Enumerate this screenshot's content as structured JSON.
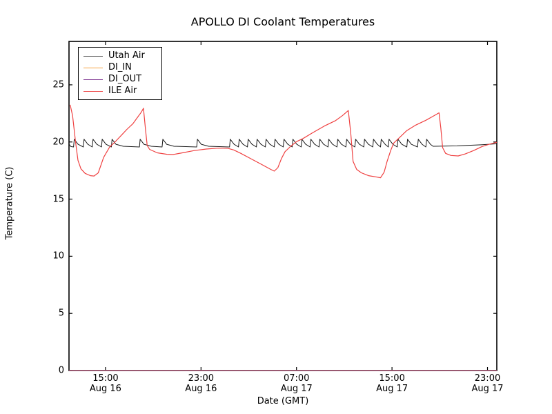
{
  "figure": {
    "title": "APOLLO DI Coolant Temperatures"
  },
  "axes": {
    "xlabel": "Date (GMT)",
    "ylabel": "Temperature (C)",
    "x_ticks": [
      {
        "time": "15:00",
        "date": "Aug 16",
        "t": 3.06
      },
      {
        "time": "23:00",
        "date": "Aug 16",
        "t": 11.06
      },
      {
        "time": "07:00",
        "date": "Aug 17",
        "t": 19.06
      },
      {
        "time": "15:00",
        "date": "Aug 17",
        "t": 27.06
      },
      {
        "time": "23:00",
        "date": "Aug 17",
        "t": 35.06
      }
    ],
    "y_ticks": [
      {
        "label": "0",
        "v": 0
      },
      {
        "label": "5",
        "v": 5
      },
      {
        "label": "10",
        "v": 10
      },
      {
        "label": "15",
        "v": 15
      },
      {
        "label": "20",
        "v": 20
      },
      {
        "label": "25",
        "v": 25
      }
    ]
  },
  "legend": {
    "items": [
      {
        "label": "Utah Air",
        "color": "#4d4d4d"
      },
      {
        "label": "DI_IN",
        "color": "#f7a13d"
      },
      {
        "label": "DI_OUT",
        "color": "#7b2f8e"
      },
      {
        "label": "ILE Air",
        "color": "#ef5050"
      }
    ]
  },
  "chart_data": {
    "type": "line",
    "title": "APOLLO DI Coolant Temperatures",
    "xlabel": "Date (GMT)",
    "ylabel": "Temperature (C)",
    "x_unit": "hours after Aug 16 12:00 GMT",
    "xlim": [
      0,
      35.84
    ],
    "ylim": [
      0,
      28.8
    ],
    "grid": false,
    "legend_position": "upper left",
    "series": [
      {
        "name": "Utah Air",
        "color": "#1a1a1a",
        "shape": "sawtooth-spikes",
        "baseline": 19.56,
        "spike_peak": 20.24,
        "start_points": [
          [
            0,
            19.82
          ],
          [
            0.15,
            19.6
          ]
        ],
        "spike_times": [
          0.38,
          1.2,
          1.95,
          2.72,
          3.55,
          5.9,
          7.8,
          10.7,
          13.45,
          14.2,
          14.95,
          15.7,
          16.45,
          17.2,
          17.95,
          18.7,
          19.45,
          20.2,
          20.95,
          21.7,
          22.45,
          23.2,
          23.95,
          24.7,
          25.45,
          26.1,
          26.75,
          27.5,
          28.3,
          29.2,
          29.9
        ],
        "end_points": [
          [
            30.5,
            19.62
          ],
          [
            32.5,
            19.66
          ],
          [
            34.5,
            19.75
          ],
          [
            35.84,
            19.84
          ]
        ]
      },
      {
        "name": "DI_IN",
        "color": "#f7a13d",
        "points": [
          [
            0,
            0
          ],
          [
            35.84,
            0
          ]
        ]
      },
      {
        "name": "DI_OUT",
        "color": "#7b2f8e",
        "points": [
          [
            0,
            0
          ],
          [
            35.84,
            0
          ]
        ]
      },
      {
        "name": "ILE Air",
        "color": "#ef4040",
        "points": [
          [
            0.1,
            23.25
          ],
          [
            0.3,
            22.3
          ],
          [
            0.55,
            20.0
          ],
          [
            0.75,
            18.4
          ],
          [
            1.0,
            17.65
          ],
          [
            1.35,
            17.25
          ],
          [
            1.8,
            17.05
          ],
          [
            2.1,
            17.02
          ],
          [
            2.45,
            17.3
          ],
          [
            2.9,
            18.65
          ],
          [
            3.4,
            19.55
          ],
          [
            3.9,
            20.05
          ],
          [
            4.4,
            20.6
          ],
          [
            4.85,
            21.1
          ],
          [
            5.35,
            21.6
          ],
          [
            5.7,
            22.1
          ],
          [
            6.05,
            22.6
          ],
          [
            6.24,
            22.95
          ],
          [
            6.4,
            21.2
          ],
          [
            6.55,
            19.7
          ],
          [
            6.75,
            19.35
          ],
          [
            7.4,
            19.05
          ],
          [
            8.2,
            18.92
          ],
          [
            8.7,
            18.9
          ],
          [
            9.5,
            19.05
          ],
          [
            10.5,
            19.25
          ],
          [
            11.5,
            19.38
          ],
          [
            12.5,
            19.46
          ],
          [
            13.3,
            19.45
          ],
          [
            13.8,
            19.3
          ],
          [
            14.4,
            19.0
          ],
          [
            15.3,
            18.5
          ],
          [
            16.2,
            18.0
          ],
          [
            16.9,
            17.6
          ],
          [
            17.2,
            17.45
          ],
          [
            17.5,
            17.75
          ],
          [
            17.8,
            18.55
          ],
          [
            18.1,
            19.15
          ],
          [
            18.6,
            19.65
          ],
          [
            19.1,
            20.05
          ],
          [
            19.6,
            20.3
          ],
          [
            20.4,
            20.8
          ],
          [
            21.4,
            21.4
          ],
          [
            22.3,
            21.85
          ],
          [
            22.9,
            22.3
          ],
          [
            23.4,
            22.75
          ],
          [
            23.6,
            20.8
          ],
          [
            23.8,
            18.3
          ],
          [
            24.1,
            17.6
          ],
          [
            24.5,
            17.3
          ],
          [
            25.1,
            17.05
          ],
          [
            25.7,
            16.95
          ],
          [
            26.1,
            16.87
          ],
          [
            26.4,
            17.35
          ],
          [
            26.65,
            18.3
          ],
          [
            26.95,
            19.25
          ],
          [
            27.2,
            19.9
          ],
          [
            27.6,
            20.3
          ],
          [
            28.3,
            21.0
          ],
          [
            29.0,
            21.45
          ],
          [
            29.9,
            21.9
          ],
          [
            30.5,
            22.25
          ],
          [
            31.0,
            22.55
          ],
          [
            31.15,
            21.2
          ],
          [
            31.3,
            19.5
          ],
          [
            31.55,
            19.0
          ],
          [
            32.0,
            18.82
          ],
          [
            32.6,
            18.78
          ],
          [
            33.2,
            18.95
          ],
          [
            33.9,
            19.25
          ],
          [
            34.6,
            19.6
          ],
          [
            35.2,
            19.8
          ],
          [
            35.84,
            19.97
          ]
        ]
      }
    ]
  }
}
